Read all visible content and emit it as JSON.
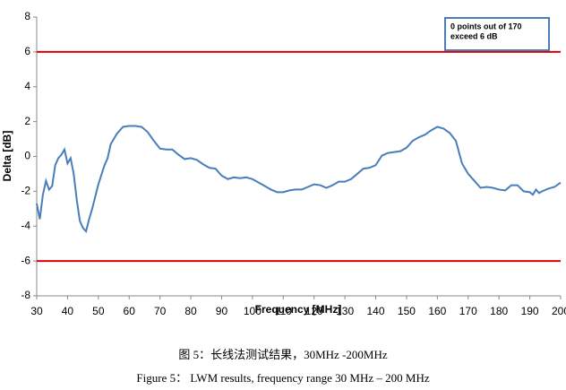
{
  "chart_data": {
    "type": "line",
    "x_label": "Frequency [MHz]",
    "y_label": "Delta [dB]",
    "x": [
      30,
      31,
      32,
      33,
      34,
      35,
      36,
      37,
      38,
      39,
      40,
      41,
      42,
      43,
      44,
      45,
      46,
      47,
      48,
      49,
      50,
      52,
      53,
      54,
      56,
      58,
      60,
      62,
      64,
      66,
      68,
      70,
      72,
      74,
      76,
      78,
      80,
      82,
      84,
      86,
      88,
      90,
      92,
      94,
      96,
      98,
      100,
      102,
      104,
      106,
      108,
      110,
      112,
      114,
      116,
      118,
      120,
      122,
      124,
      126,
      128,
      130,
      132,
      134,
      136,
      138,
      140,
      142,
      144,
      146,
      148,
      150,
      152,
      154,
      156,
      158,
      160,
      162,
      164,
      166,
      168,
      170,
      172,
      174,
      176,
      178,
      180,
      182,
      184,
      186,
      188,
      190,
      191,
      192,
      193,
      194,
      196,
      198,
      200
    ],
    "series": [
      {
        "name": "Delta",
        "color": "#4a7ebb",
        "values": [
          -2.7,
          -3.6,
          -2.2,
          -1.4,
          -1.9,
          -1.7,
          -0.5,
          -0.1,
          0.1,
          0.4,
          -0.4,
          -0.1,
          -1.0,
          -2.5,
          -3.7,
          -4.1,
          -4.3,
          -3.6,
          -3.0,
          -2.3,
          -1.6,
          -0.5,
          -0.1,
          0.7,
          1.3,
          1.7,
          1.75,
          1.75,
          1.7,
          1.4,
          0.9,
          0.45,
          0.4,
          0.4,
          0.1,
          -0.15,
          -0.1,
          -0.2,
          -0.45,
          -0.65,
          -0.7,
          -1.1,
          -1.3,
          -1.2,
          -1.25,
          -1.2,
          -1.3,
          -1.5,
          -1.7,
          -1.9,
          -2.05,
          -2.05,
          -1.95,
          -1.9,
          -1.9,
          -1.75,
          -1.6,
          -1.65,
          -1.8,
          -1.65,
          -1.45,
          -1.45,
          -1.3,
          -1.0,
          -0.7,
          -0.65,
          -0.5,
          0.05,
          0.2,
          0.25,
          0.3,
          0.5,
          0.9,
          1.1,
          1.25,
          1.5,
          1.7,
          1.6,
          1.35,
          0.9,
          -0.4,
          -1.0,
          -1.4,
          -1.8,
          -1.75,
          -1.8,
          -1.9,
          -1.95,
          -1.65,
          -1.65,
          -2.0,
          -2.05,
          -2.2,
          -1.9,
          -2.1,
          -2.0,
          -1.85,
          -1.75,
          -1.5
        ]
      }
    ],
    "xlim": [
      30,
      200
    ],
    "ylim": [
      -8,
      8
    ],
    "xticks": [
      30,
      40,
      50,
      60,
      70,
      80,
      90,
      100,
      110,
      120,
      130,
      140,
      150,
      160,
      170,
      180,
      190,
      200
    ],
    "yticks": [
      -8,
      -6,
      -4,
      -2,
      0,
      2,
      4,
      6,
      8
    ],
    "limit_lines": [
      6,
      -6
    ],
    "limit_color": "#e00000",
    "annotation": [
      "0 points out of 170",
      "exceed 6 dB"
    ]
  },
  "captions": [
    "图 5：长线法测试结果，30MHz -200MHz",
    "Figure 5：   LWM results, frequency range 30 MHz – 200 MHz"
  ]
}
